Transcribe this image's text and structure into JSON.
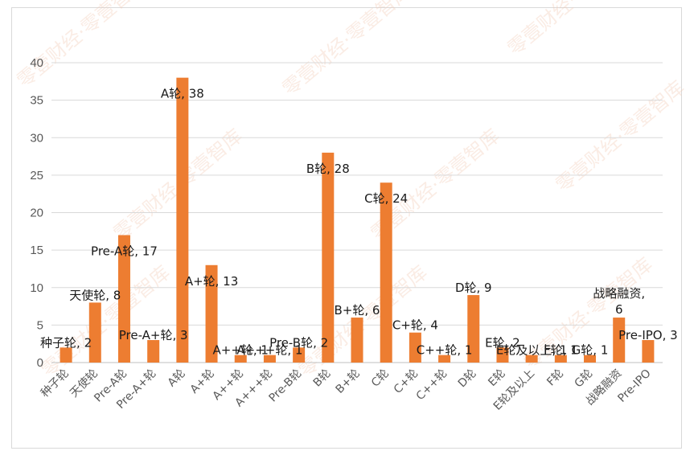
{
  "watermark": {
    "text": "零壹财经·零壹智库"
  },
  "colors": {
    "bar": "#ED7D31",
    "grid": "#D9D9D9",
    "watermark": "#F3C9B5"
  },
  "chart_data": {
    "type": "bar",
    "title": "",
    "xlabel": "",
    "ylabel": "",
    "ylim": [
      0,
      40
    ],
    "yticks": [
      0,
      5,
      10,
      15,
      20,
      25,
      30,
      35,
      40
    ],
    "grid": true,
    "legend": "none",
    "categories": [
      "种子轮",
      "天使轮",
      "Pre-A轮",
      "Pre-A+轮",
      "A轮",
      "A+轮",
      "A++轮",
      "A+++轮",
      "Pre-B轮",
      "B轮",
      "B+轮",
      "C轮",
      "C+轮",
      "C++轮",
      "D轮",
      "E轮",
      "E轮及以上",
      "F轮",
      "G轮",
      "战略融资",
      "Pre-IPO"
    ],
    "values": [
      2,
      8,
      17,
      3,
      38,
      13,
      1,
      1,
      2,
      28,
      6,
      24,
      4,
      1,
      9,
      2,
      1,
      1,
      1,
      6,
      3
    ],
    "data_labels": [
      "种子轮, 2",
      "天使轮, 8",
      "Pre-A轮, 17",
      "Pre-A+轮, 3",
      "A轮, 38",
      "A+轮, 13",
      "A++轮, 1",
      "A+++轮, 1",
      "Pre-B轮, 2",
      "B轮, 28",
      "B+轮, 6",
      "C轮, 24",
      "C+轮, 4",
      "C++轮, 1",
      "D轮, 9",
      "E轮, 2",
      "E轮及以上, 1",
      "F轮, 1",
      "G轮, 1",
      "战略融资, 6",
      "Pre-IPO, 3"
    ]
  }
}
